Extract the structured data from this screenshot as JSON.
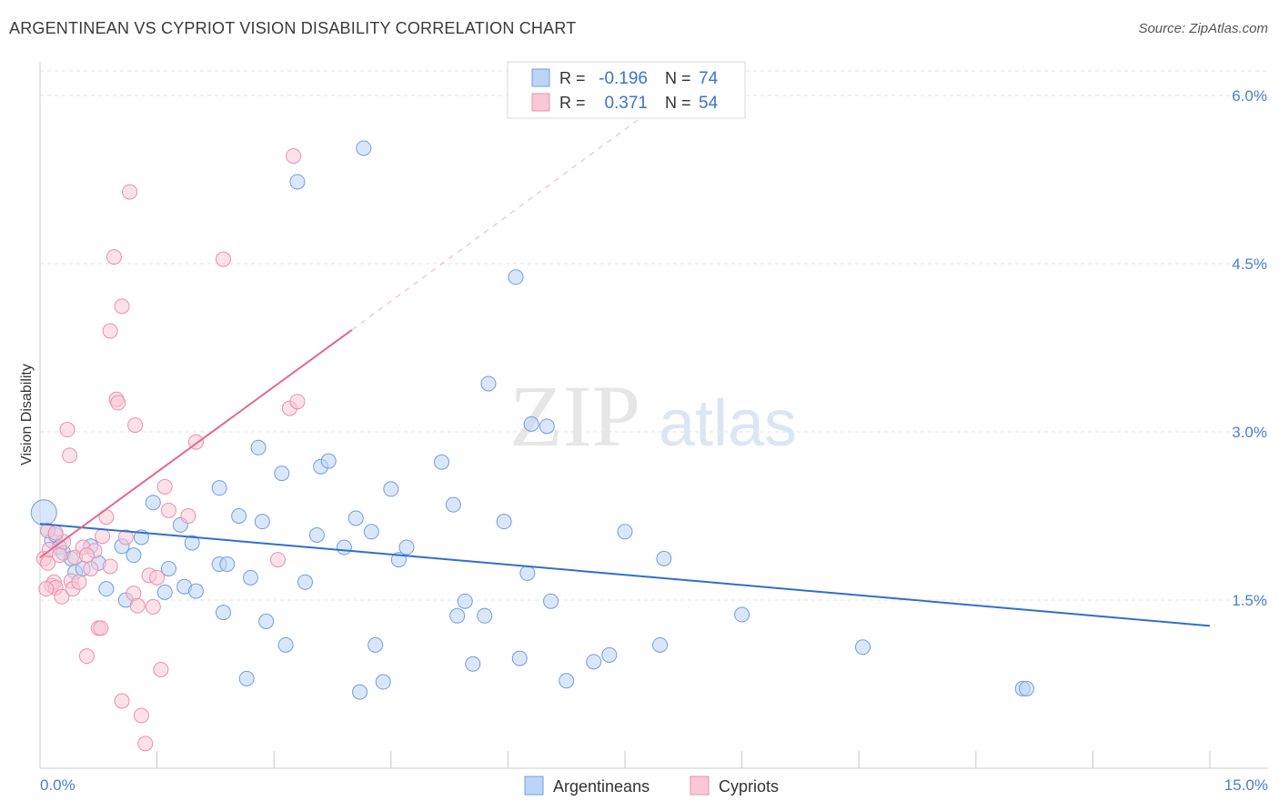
{
  "header": {
    "title": "ARGENTINEAN VS CYPRIOT VISION DISABILITY CORRELATION CHART",
    "source": "Source: ZipAtlas.com"
  },
  "watermark": {
    "zip": "ZIP",
    "atlas": "atlas"
  },
  "colors": {
    "blue_fill": "#bcd4f5",
    "blue_stroke": "#6f9fe0",
    "blue_line": "#2e6fcf",
    "pink_fill": "#f8c8d6",
    "pink_stroke": "#ec8fae",
    "pink_line": "#e2678f",
    "tick_label": "#4a7fcf",
    "grid": "#e3e3e3"
  },
  "legend_box": {
    "rows": [
      {
        "r_label": "R =",
        "r_value": "-0.196",
        "n_label": "N =",
        "n_value": "74"
      },
      {
        "r_label": "R =",
        "r_value": "0.371",
        "n_label": "N =",
        "n_value": "54"
      }
    ]
  },
  "chart_data": {
    "type": "scatter",
    "title": "ARGENTINEAN VS CYPRIOT VISION DISABILITY CORRELATION CHART",
    "xlabel": "",
    "ylabel": "Vision Disability",
    "xlim": [
      0,
      15
    ],
    "ylim": [
      0,
      6.3
    ],
    "x_tick_labels": [
      "0.0%",
      "15.0%"
    ],
    "y_ticks": [
      1.5,
      3.0,
      4.5,
      6.0
    ],
    "y_tick_labels": [
      "1.5%",
      "3.0%",
      "4.5%",
      "6.0%"
    ],
    "grid": true,
    "legend_position": "bottom-center",
    "series": [
      {
        "name": "Argentineans",
        "color": "#6f9fe0",
        "regression": {
          "x": [
            0.0,
            15.0
          ],
          "y": [
            2.18,
            1.27
          ]
        },
        "points": [
          [
            0.05,
            2.28,
            14
          ],
          [
            0.1,
            2.12,
            8
          ],
          [
            0.15,
            2.03,
            8
          ],
          [
            0.2,
            2.08,
            8
          ],
          [
            0.25,
            1.97,
            8
          ],
          [
            0.3,
            1.92,
            8
          ],
          [
            0.4,
            1.87,
            8
          ],
          [
            0.45,
            1.75,
            8
          ],
          [
            0.55,
            1.78,
            8
          ],
          [
            0.65,
            1.98,
            8
          ],
          [
            0.75,
            1.83,
            8
          ],
          [
            0.85,
            1.6,
            8
          ],
          [
            1.05,
            1.98,
            8
          ],
          [
            1.1,
            1.5,
            8
          ],
          [
            1.2,
            1.9,
            8
          ],
          [
            1.3,
            2.06,
            8
          ],
          [
            1.45,
            2.37,
            8
          ],
          [
            1.6,
            1.57,
            8
          ],
          [
            1.65,
            1.78,
            8
          ],
          [
            1.8,
            2.17,
            8
          ],
          [
            1.85,
            1.62,
            8
          ],
          [
            1.95,
            2.01,
            8
          ],
          [
            2.0,
            1.58,
            8
          ],
          [
            2.3,
            2.5,
            8
          ],
          [
            2.35,
            1.39,
            8
          ],
          [
            2.3,
            1.82,
            8
          ],
          [
            2.4,
            1.82,
            8
          ],
          [
            2.55,
            2.25,
            8
          ],
          [
            2.65,
            0.8,
            8
          ],
          [
            2.7,
            1.7,
            8
          ],
          [
            2.8,
            2.86,
            8
          ],
          [
            2.85,
            2.2,
            8
          ],
          [
            2.9,
            1.31,
            8
          ],
          [
            3.1,
            2.63,
            8
          ],
          [
            3.15,
            1.1,
            8
          ],
          [
            3.3,
            5.23,
            8
          ],
          [
            3.4,
            1.66,
            8
          ],
          [
            3.55,
            2.08,
            8
          ],
          [
            3.6,
            2.69,
            8
          ],
          [
            3.7,
            2.74,
            8
          ],
          [
            3.9,
            1.97,
            8
          ],
          [
            4.05,
            2.23,
            8
          ],
          [
            4.1,
            0.68,
            8
          ],
          [
            4.15,
            5.53,
            8
          ],
          [
            4.25,
            2.11,
            8
          ],
          [
            4.3,
            1.1,
            8
          ],
          [
            4.4,
            0.77,
            8
          ],
          [
            4.5,
            2.49,
            8
          ],
          [
            4.6,
            1.86,
            8
          ],
          [
            4.7,
            1.97,
            8
          ],
          [
            5.15,
            2.73,
            8
          ],
          [
            5.3,
            2.35,
            8
          ],
          [
            5.35,
            1.36,
            8
          ],
          [
            5.45,
            1.49,
            8
          ],
          [
            5.55,
            0.93,
            8
          ],
          [
            5.7,
            1.36,
            8
          ],
          [
            5.75,
            3.43,
            8
          ],
          [
            5.95,
            2.2,
            8
          ],
          [
            6.1,
            4.38,
            8
          ],
          [
            6.15,
            0.98,
            8
          ],
          [
            6.25,
            1.74,
            8
          ],
          [
            6.3,
            3.07,
            8
          ],
          [
            6.5,
            3.05,
            8
          ],
          [
            6.55,
            1.49,
            8
          ],
          [
            6.75,
            0.78,
            8
          ],
          [
            7.1,
            0.95,
            8
          ],
          [
            7.3,
            1.01,
            8
          ],
          [
            7.5,
            2.11,
            8
          ],
          [
            7.95,
            1.1,
            8
          ],
          [
            8.0,
            1.87,
            8
          ],
          [
            9.0,
            1.37,
            8
          ],
          [
            10.55,
            1.08,
            8
          ],
          [
            12.6,
            0.71,
            8
          ],
          [
            12.65,
            0.71,
            8
          ]
        ]
      },
      {
        "name": "Cypriots",
        "color": "#ec8fae",
        "regression": {
          "x": [
            0.0,
            4.0
          ],
          "y": [
            1.88,
            3.91
          ]
        },
        "regression_dashed": {
          "x": [
            4.0,
            7.7
          ],
          "y": [
            3.91,
            5.8
          ]
        },
        "points": [
          [
            0.05,
            1.87,
            8
          ],
          [
            0.1,
            1.83,
            8
          ],
          [
            0.1,
            2.12,
            8
          ],
          [
            0.12,
            1.95,
            8
          ],
          [
            0.15,
            1.63,
            8
          ],
          [
            0.18,
            1.66,
            8
          ],
          [
            0.2,
            1.61,
            8
          ],
          [
            0.25,
            1.9,
            8
          ],
          [
            0.28,
            1.53,
            8
          ],
          [
            0.3,
            2.02,
            8
          ],
          [
            0.35,
            3.02,
            8
          ],
          [
            0.38,
            2.79,
            8
          ],
          [
            0.4,
            1.67,
            8
          ],
          [
            0.42,
            1.6,
            8
          ],
          [
            0.45,
            1.88,
            8
          ],
          [
            0.5,
            1.66,
            8
          ],
          [
            0.55,
            1.97,
            8
          ],
          [
            0.6,
            1.0,
            8
          ],
          [
            0.65,
            1.78,
            8
          ],
          [
            0.7,
            1.94,
            8
          ],
          [
            0.75,
            1.25,
            8
          ],
          [
            0.78,
            1.25,
            8
          ],
          [
            0.8,
            2.07,
            8
          ],
          [
            0.85,
            2.24,
            8
          ],
          [
            0.9,
            3.9,
            8
          ],
          [
            0.95,
            4.56,
            8
          ],
          [
            0.98,
            3.29,
            8
          ],
          [
            1.0,
            3.26,
            8
          ],
          [
            1.05,
            4.12,
            8
          ],
          [
            1.1,
            2.06,
            8
          ],
          [
            1.15,
            5.14,
            8
          ],
          [
            1.2,
            1.56,
            8
          ],
          [
            1.22,
            3.06,
            8
          ],
          [
            1.25,
            1.45,
            8
          ],
          [
            1.3,
            0.47,
            8
          ],
          [
            1.35,
            0.22,
            8
          ],
          [
            1.4,
            1.72,
            8
          ],
          [
            1.45,
            1.44,
            8
          ],
          [
            1.5,
            1.7,
            8
          ],
          [
            1.55,
            0.88,
            8
          ],
          [
            1.6,
            2.51,
            8
          ],
          [
            1.65,
            2.3,
            8
          ],
          [
            1.05,
            0.6,
            8
          ],
          [
            1.9,
            2.25,
            8
          ],
          [
            2.0,
            2.91,
            8
          ],
          [
            2.35,
            4.54,
            8
          ],
          [
            3.05,
            1.86,
            8
          ],
          [
            3.2,
            3.21,
            8
          ],
          [
            3.25,
            5.46,
            8
          ],
          [
            3.3,
            3.27,
            8
          ],
          [
            0.2,
            2.1,
            8
          ],
          [
            0.08,
            1.6,
            8
          ],
          [
            0.6,
            1.9,
            8
          ],
          [
            0.9,
            1.8,
            8
          ]
        ]
      }
    ]
  }
}
